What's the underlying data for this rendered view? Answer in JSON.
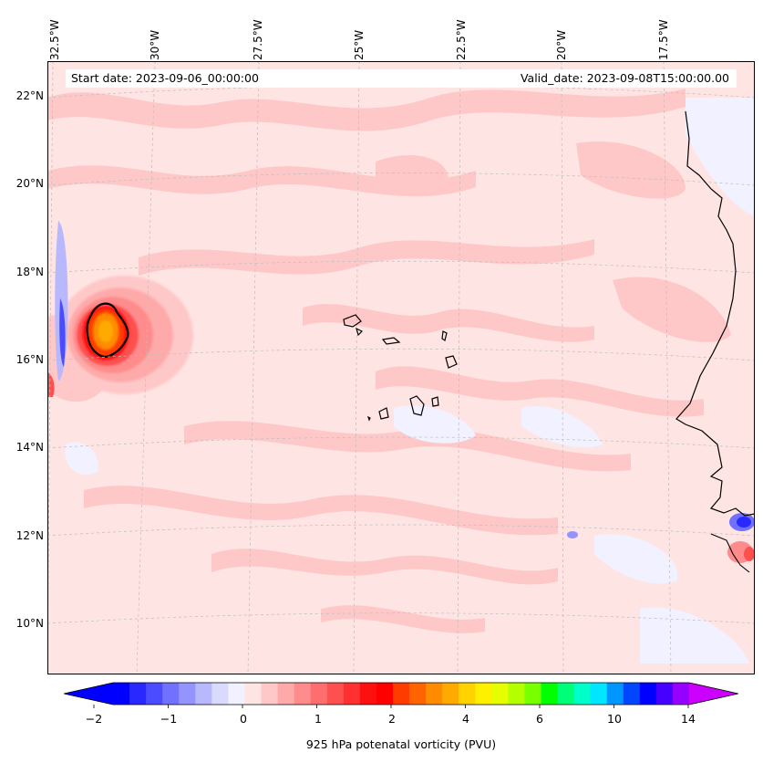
{
  "map": {
    "start_date_text": "Start date: 2023-09-06_00:00:00",
    "valid_date_text": "Valid_date: 2023-09-08T15:00:00.00",
    "longitude_labels": [
      "32.5°W",
      "30°W",
      "27.5°W",
      "25°W",
      "22.5°W",
      "20°W",
      "17.5°W"
    ],
    "latitude_labels": [
      "22°N",
      "20°N",
      "18°N",
      "16°N",
      "14°N",
      "12°N",
      "10°N"
    ],
    "variable": "925 hPa potential vorticity",
    "features": {
      "pv_maximum": "tropical cyclone vortex near 16.8°N, 31.7°W",
      "coastline": "West African coast (Senegal / Mauritania / Guinea-Bissau)",
      "islands": "Cape Verde Islands"
    }
  },
  "colorbar": {
    "tick_labels": [
      "−2",
      "−1",
      "0",
      "1",
      "2",
      "4",
      "6",
      "10",
      "14"
    ],
    "label": "925 hPa potenatal vorticity (PVU)",
    "colors": [
      "#0000ff",
      "#2828ff",
      "#4b4bff",
      "#7171ff",
      "#9494ff",
      "#b8b8ff",
      "#dadaff",
      "#f1f1ff",
      "#ffe4e4",
      "#ffc8c8",
      "#ffaaaa",
      "#ff8c8c",
      "#ff6e6e",
      "#ff5050",
      "#ff3030",
      "#ff1010",
      "#ff0000",
      "#ff3c00",
      "#ff6400",
      "#ff8c00",
      "#ffaa00",
      "#ffd200",
      "#fff000",
      "#e6ff00",
      "#b4ff00",
      "#78ff00",
      "#00ff00",
      "#00ff78",
      "#00ffc8",
      "#00e6ff",
      "#0096ff",
      "#0046ff",
      "#0000ff",
      "#4600ff",
      "#9600ff"
    ],
    "extend_low_color": "#0000ff",
    "extend_high_color": "#cc00ff"
  }
}
